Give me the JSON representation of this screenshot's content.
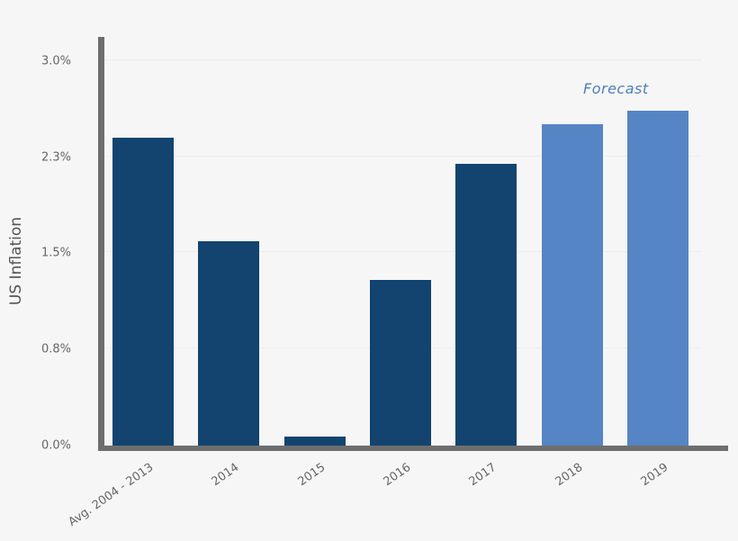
{
  "chart_data": {
    "type": "bar",
    "title": "",
    "xlabel": "",
    "ylabel": "US Inflation",
    "ylim": [
      0,
      3.0
    ],
    "y_ticks": [
      "0.0%",
      "0.8%",
      "1.5%",
      "2.3%",
      "3.0%"
    ],
    "y_tick_values": [
      0,
      0.75,
      1.5,
      2.25,
      3.0
    ],
    "grid": true,
    "categories": [
      "Avg. 2004 - 2013",
      "2014",
      "2015",
      "2016",
      "2017",
      "2018",
      "2019"
    ],
    "values": [
      2.4,
      1.59,
      0.07,
      1.29,
      2.2,
      2.51,
      2.61
    ],
    "forecast_categories": [
      "2018",
      "2019"
    ],
    "annotations": [
      {
        "text": "Forecast",
        "over": [
          "2018",
          "2019"
        ]
      }
    ],
    "colors": {
      "actual": "#12446f",
      "forecast": "#5585c4",
      "axis": "#6e6e6e"
    }
  }
}
